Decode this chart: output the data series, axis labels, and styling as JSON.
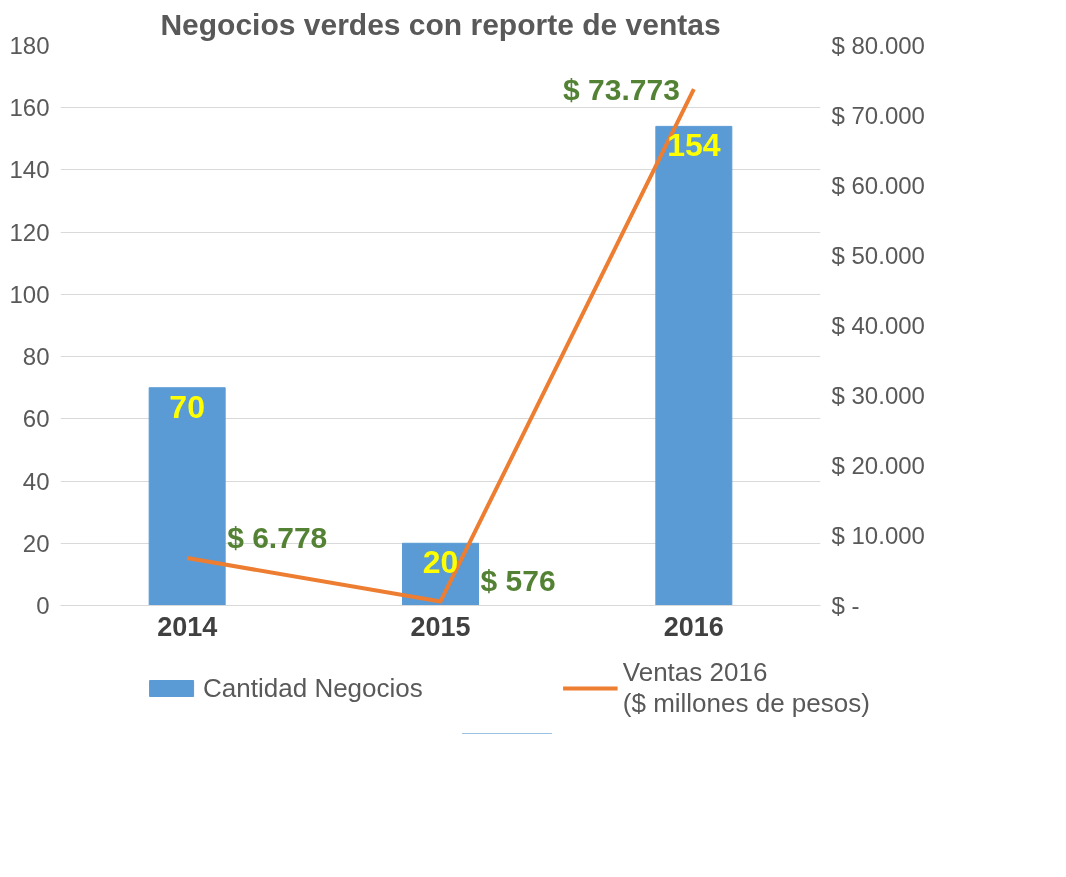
{
  "chart_data": {
    "type": "bar",
    "title": "Negocios verdes con reporte de ventas",
    "categories": [
      "2014",
      "2015",
      "2016"
    ],
    "series": [
      {
        "name": "Cantidad Negocios",
        "type": "bar",
        "color": "#5b9bd5",
        "values": [
          70,
          20,
          154
        ],
        "value_labels": [
          "70",
          "20",
          "154"
        ]
      },
      {
        "name": "Ventas 2016\n($ millones de pesos)",
        "type": "line",
        "axis": "y2",
        "color": "#ed7d31",
        "values": [
          6778,
          576,
          73773
        ],
        "value_labels": [
          "$ 6.778",
          "$ 576",
          "$ 73.773"
        ]
      }
    ],
    "ylim": [
      0,
      180
    ],
    "yticks": [
      0,
      20,
      40,
      60,
      80,
      100,
      120,
      140,
      160,
      180
    ],
    "y2lim": [
      0,
      80000
    ],
    "y2ticks": [
      {
        "value": 0,
        "label": "$ -"
      },
      {
        "value": 10000,
        "label": "$ 10.000"
      },
      {
        "value": 20000,
        "label": "$ 20.000"
      },
      {
        "value": 30000,
        "label": "$ 30.000"
      },
      {
        "value": 40000,
        "label": "$ 40.000"
      },
      {
        "value": 50000,
        "label": "$ 50.000"
      },
      {
        "value": 60000,
        "label": "$ 60.000"
      },
      {
        "value": 70000,
        "label": "$ 70.000"
      },
      {
        "value": 80000,
        "label": "$ 80.000"
      }
    ],
    "grid": "y",
    "legend": "bottom",
    "marker": "none"
  }
}
